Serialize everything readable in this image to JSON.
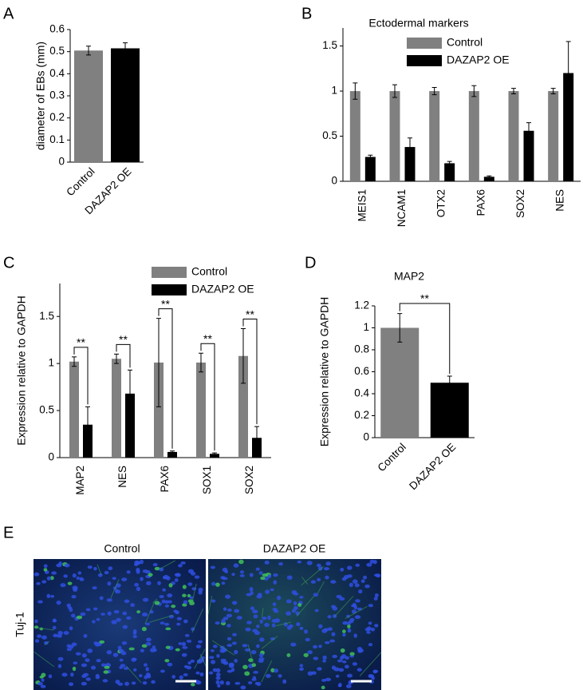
{
  "chart_data": [
    {
      "type": "bar",
      "panel": "A",
      "ylabel": "diameter of EBs (mm)",
      "categories": [
        "Control",
        "DAZAP2 OE"
      ],
      "values": [
        0.505,
        0.515
      ],
      "errors": [
        0.02,
        0.025
      ],
      "colors": [
        "#808080",
        "#000000"
      ],
      "ylim": [
        0,
        0.6
      ],
      "yticks": [
        0,
        0.1,
        0.2,
        0.3,
        0.4,
        0.5,
        0.6
      ]
    },
    {
      "type": "bar",
      "panel": "B",
      "title": "Ectodermal markers",
      "categories": [
        "MEIS1",
        "NCAM1",
        "OTX2",
        "PAX6",
        "SOX2",
        "NES"
      ],
      "series": [
        {
          "name": "Control",
          "color": "#808080",
          "values": [
            1,
            1,
            1,
            1,
            1,
            1
          ],
          "errors": [
            0.09,
            0.07,
            0.04,
            0.06,
            0.03,
            0.03
          ]
        },
        {
          "name": "DAZAP2 OE",
          "color": "#000000",
          "values": [
            0.27,
            0.38,
            0.2,
            0.05,
            0.56,
            1.2
          ],
          "errors": [
            0.02,
            0.1,
            0.02,
            0.01,
            0.09,
            0.35
          ]
        }
      ],
      "ylim": [
        0,
        1.7
      ],
      "yticks": [
        0,
        0.5,
        1,
        1.5
      ]
    },
    {
      "type": "bar",
      "panel": "C",
      "ylabel": "Expression relative to GAPDH",
      "categories": [
        "MAP2",
        "NES",
        "PAX6",
        "SOX1",
        "SOX2"
      ],
      "series": [
        {
          "name": "Control",
          "color": "#808080",
          "values": [
            1.02,
            1.05,
            1.01,
            1.01,
            1.08
          ],
          "errors": [
            0.05,
            0.05,
            0.47,
            0.1,
            0.29
          ]
        },
        {
          "name": "DAZAP2 OE",
          "color": "#000000",
          "values": [
            0.35,
            0.68,
            0.06,
            0.04,
            0.21
          ],
          "errors": [
            0.19,
            0.25,
            0.01,
            0.01,
            0.12
          ]
        }
      ],
      "annotations": [
        "**",
        "**",
        "**",
        "**",
        "**"
      ],
      "ylim": [
        0,
        1.85
      ],
      "yticks": [
        0,
        0.5,
        1,
        1.5
      ]
    },
    {
      "type": "bar",
      "panel": "D",
      "title": "MAP2",
      "ylabel": "Expression relative to GAPDH",
      "categories": [
        "Control",
        "DAZAP2 OE"
      ],
      "values": [
        1.0,
        0.5
      ],
      "errors": [
        0.13,
        0.06
      ],
      "colors": [
        "#808080",
        "#000000"
      ],
      "annotations": [
        "**"
      ],
      "ylim": [
        0,
        1.2
      ],
      "yticks": [
        0,
        0.2,
        0.4,
        0.6,
        0.8,
        1,
        1.2
      ]
    }
  ],
  "panel_e": {
    "panel": "E",
    "stain": "Tuj-1",
    "images": [
      "Control",
      "DAZAP2 OE"
    ]
  }
}
